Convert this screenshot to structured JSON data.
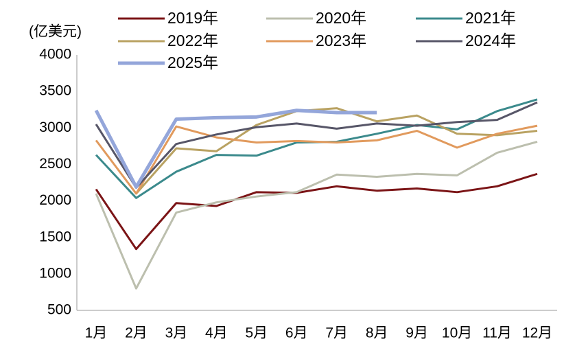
{
  "chart_data": {
    "type": "line",
    "y_label": "(亿美元)",
    "categories": [
      "1月",
      "2月",
      "3月",
      "4月",
      "5月",
      "6月",
      "7月",
      "8月",
      "9月",
      "10月",
      "11月",
      "12月"
    ],
    "series": [
      {
        "name": "2019年",
        "color": "#7b1416",
        "values": [
          2160,
          1340,
          1970,
          1930,
          2120,
          2110,
          2200,
          2140,
          2170,
          2120,
          2200,
          2370
        ]
      },
      {
        "name": "2020年",
        "color": "#bcbfae",
        "values": [
          2100,
          800,
          1840,
          1980,
          2060,
          2120,
          2360,
          2330,
          2370,
          2350,
          2660,
          2810
        ]
      },
      {
        "name": "2021年",
        "color": "#3b8a8c",
        "values": [
          2630,
          2040,
          2400,
          2630,
          2620,
          2800,
          2810,
          2920,
          3040,
          2980,
          3230,
          3390
        ]
      },
      {
        "name": "2022年",
        "color": "#b9a262",
        "values": [
          null,
          2100,
          2720,
          2680,
          3040,
          3230,
          3270,
          3090,
          3170,
          2920,
          2900,
          2960
        ]
      },
      {
        "name": "2023年",
        "color": "#e19a5d",
        "values": [
          2830,
          2100,
          3020,
          2870,
          2800,
          2820,
          2800,
          2830,
          2960,
          2730,
          2920,
          3030
        ]
      },
      {
        "name": "2024年",
        "color": "#575668",
        "values": [
          3050,
          2180,
          2780,
          2910,
          3010,
          3060,
          2990,
          3060,
          3030,
          3080,
          3110,
          3350
        ]
      },
      {
        "name": "2025年",
        "color": "#94a6da",
        "values": [
          3240,
          2190,
          3120,
          3140,
          3150,
          3240,
          3210,
          3210,
          null,
          null,
          null,
          null
        ]
      }
    ],
    "ylim": [
      500,
      4000
    ],
    "yticks": [
      500,
      1000,
      1500,
      2000,
      2500,
      3000,
      3500,
      4000
    ]
  }
}
